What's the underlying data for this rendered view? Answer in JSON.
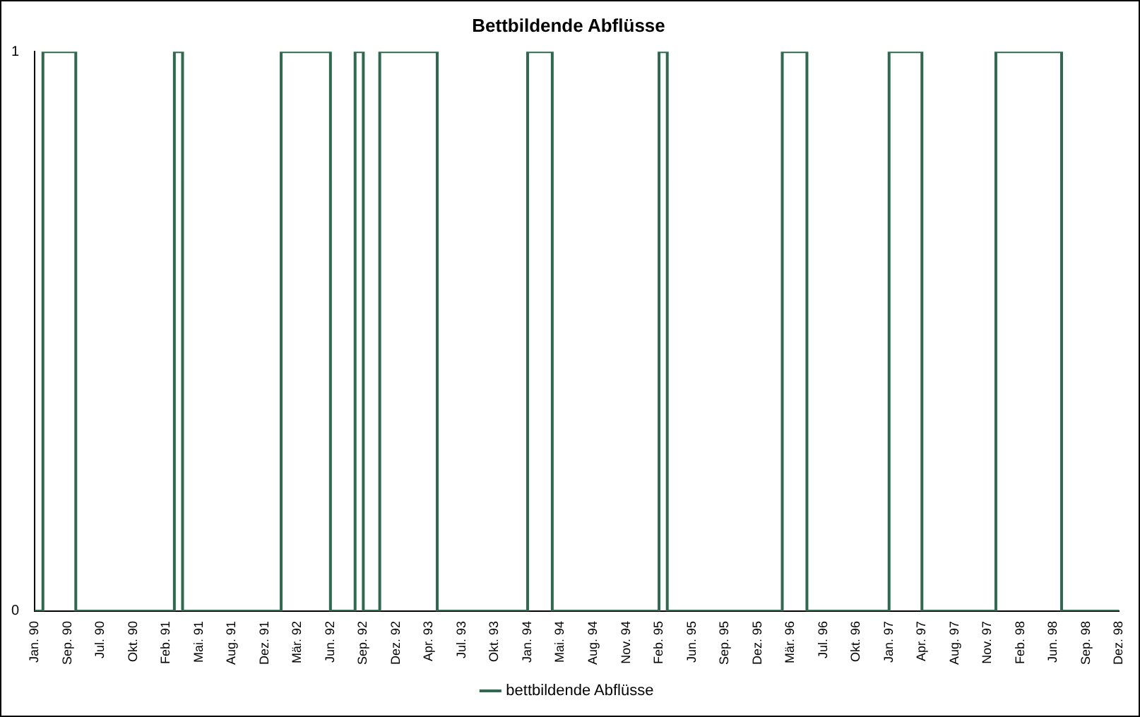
{
  "chart_data": {
    "type": "step",
    "title": "Bettbildende Abflüsse",
    "categories": [
      "Jan. 90",
      null,
      null,
      null,
      "Sep. 90",
      null,
      null,
      null,
      "Jul. 90",
      null,
      null,
      null,
      "Okt. 90",
      null,
      null,
      null,
      "Feb. 91",
      null,
      null,
      null,
      "Mai. 91",
      null,
      null,
      null,
      "Aug. 91",
      null,
      null,
      null,
      "Dez. 91",
      null,
      null,
      null,
      "Mär. 92",
      null,
      null,
      null,
      "Jun. 92",
      null,
      null,
      null,
      "Sep. 92",
      null,
      null,
      null,
      "Dez. 92",
      null,
      null,
      null,
      "Apr. 93",
      null,
      null,
      null,
      "Jul. 93",
      null,
      null,
      null,
      "Okt. 93",
      null,
      null,
      null,
      "Jan. 94",
      null,
      null,
      null,
      "Mai. 94",
      null,
      null,
      null,
      "Aug. 94",
      null,
      null,
      null,
      "Nov. 94",
      null,
      null,
      null,
      "Feb. 95",
      null,
      null,
      null,
      "Jun. 95",
      null,
      null,
      null,
      "Sep. 95",
      null,
      null,
      null,
      "Dez. 95",
      null,
      null,
      null,
      "Mär. 96",
      null,
      null,
      null,
      "Jul. 96",
      null,
      null,
      null,
      "Okt. 96",
      null,
      null,
      null,
      "Jan. 97",
      null,
      null,
      null,
      "Apr. 97",
      null,
      null,
      null,
      "Aug. 97",
      null,
      null,
      null,
      "Nov. 97",
      null,
      null,
      null,
      "Feb. 98",
      null,
      null,
      null,
      "Jun. 98",
      null,
      null,
      null,
      "Sep. 98",
      null,
      null,
      null,
      "Dez. 98"
    ],
    "series": [
      {
        "name": "bettbildende Abflüsse",
        "color": "#2d6a4f",
        "values": [
          0,
          1,
          1,
          1,
          1,
          0,
          0,
          0,
          0,
          0,
          0,
          0,
          0,
          0,
          0,
          0,
          0,
          1,
          0,
          0,
          0,
          0,
          0,
          0,
          0,
          0,
          0,
          0,
          0,
          0,
          1,
          1,
          1,
          1,
          1,
          1,
          0,
          0,
          0,
          1,
          0,
          0,
          1,
          1,
          1,
          1,
          1,
          1,
          1,
          0,
          0,
          0,
          0,
          0,
          0,
          0,
          0,
          0,
          0,
          0,
          1,
          1,
          1,
          0,
          0,
          0,
          0,
          0,
          0,
          0,
          0,
          0,
          0,
          0,
          0,
          0,
          1,
          0,
          0,
          0,
          0,
          0,
          0,
          0,
          0,
          0,
          0,
          0,
          0,
          0,
          0,
          1,
          1,
          1,
          0,
          0,
          0,
          0,
          0,
          0,
          0,
          0,
          0,
          0,
          1,
          1,
          1,
          1,
          0,
          0,
          0,
          0,
          0,
          0,
          0,
          0,
          0,
          1,
          1,
          1,
          1,
          1,
          1,
          1,
          1,
          0,
          0,
          0,
          0,
          0,
          0,
          0,
          0
        ]
      }
    ],
    "ylim": [
      0,
      1
    ],
    "yticks": [
      0,
      1
    ],
    "grid": false,
    "legend": "bottom",
    "marker": "none"
  }
}
